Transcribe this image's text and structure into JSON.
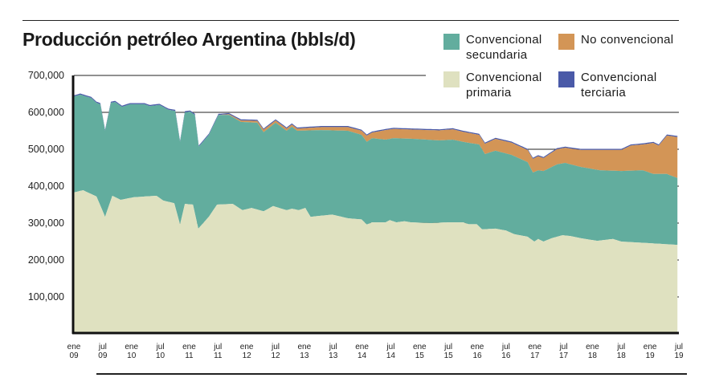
{
  "chart_data": {
    "type": "area",
    "stacked": true,
    "title": "Producción petróleo Argentina (bbls/d)",
    "ylabel": "bbls/d",
    "ylim": [
      0,
      700000
    ],
    "yticks": [
      100000,
      200000,
      300000,
      400000,
      500000,
      600000,
      700000
    ],
    "ytick_labels": [
      "100,000",
      "200,000",
      "300,000",
      "400,000",
      "500,000",
      "600,000",
      "700,000"
    ],
    "x_unit": "months since ene 09",
    "xlim": [
      0,
      126
    ],
    "xticks": [
      {
        "m": 0,
        "l1": "ene",
        "l2": "09"
      },
      {
        "m": 6,
        "l1": "jul",
        "l2": "09"
      },
      {
        "m": 12,
        "l1": "ene",
        "l2": "10"
      },
      {
        "m": 18,
        "l1": "jul",
        "l2": "10"
      },
      {
        "m": 24,
        "l1": "ene",
        "l2": "11"
      },
      {
        "m": 30,
        "l1": "jul",
        "l2": "11"
      },
      {
        "m": 36,
        "l1": "ene",
        "l2": "12"
      },
      {
        "m": 42,
        "l1": "jul",
        "l2": "12"
      },
      {
        "m": 48,
        "l1": "ene",
        "l2": "13"
      },
      {
        "m": 54,
        "l1": "jul",
        "l2": "13"
      },
      {
        "m": 60,
        "l1": "ene",
        "l2": "14"
      },
      {
        "m": 66,
        "l1": "jul",
        "l2": "14"
      },
      {
        "m": 72,
        "l1": "ene",
        "l2": "15"
      },
      {
        "m": 78,
        "l1": "jul",
        "l2": "15"
      },
      {
        "m": 84,
        "l1": "ene",
        "l2": "16"
      },
      {
        "m": 90,
        "l1": "jul",
        "l2": "16"
      },
      {
        "m": 96,
        "l1": "ene",
        "l2": "17"
      },
      {
        "m": 102,
        "l1": "jul",
        "l2": "17"
      },
      {
        "m": 108,
        "l1": "ene",
        "l2": "18"
      },
      {
        "m": 114,
        "l1": "jul",
        "l2": "18"
      },
      {
        "m": 120,
        "l1": "ene",
        "l2": "19"
      },
      {
        "m": 126,
        "l1": "jul",
        "l2": "19"
      }
    ],
    "grid": true,
    "legend_placement": "top-right",
    "value_units": "thousand bbls/d (cumulative stack top)",
    "series": [
      {
        "name": "Convencional primaria",
        "color": "#dfe1c0",
        "x": [
          0,
          1.9,
          4.7,
          6.5,
          8,
          9.7,
          12.5,
          17.2,
          18.6,
          20.9,
          22.1,
          23.1,
          24.8,
          25.9,
          28.1,
          29.8,
          33.1,
          35.1,
          37,
          39.5,
          41.5,
          44.3,
          45.4,
          46.8,
          48.2,
          49.3,
          53.8,
          57.1,
          59.9,
          61,
          62.1,
          64.9,
          65.8,
          67.2,
          68.8,
          70.2,
          74.4,
          77.8,
          81.1,
          82.2,
          83.9,
          85,
          87.8,
          90,
          91.7,
          94.5,
          95.9,
          96.7,
          97.8,
          99.5,
          101.7,
          103.4,
          105.6,
          109,
          112.3,
          114,
          125.7
        ],
        "stack_top": [
          383,
          389,
          372,
          317,
          374,
          363,
          370,
          374,
          361,
          354,
          296,
          352,
          350,
          285,
          317,
          350,
          352,
          335,
          341,
          332,
          346,
          335,
          339,
          335,
          341,
          317,
          323,
          313,
          310,
          296,
          302,
          302,
          308,
          302,
          305,
          302,
          300,
          302,
          302,
          297,
          297,
          283,
          285,
          280,
          270,
          263,
          250,
          257,
          250,
          259,
          267,
          265,
          259,
          252,
          257,
          250,
          241
        ]
      },
      {
        "name": "Convencional secundaria",
        "color": "#62ad9e",
        "x": [
          0,
          1.3,
          3.6,
          4.7,
          5.5,
          6.5,
          7.7,
          8.6,
          10,
          11.7,
          14.7,
          15.8,
          17.8,
          19.7,
          21.1,
          22.1,
          23.1,
          24.2,
          25.2,
          26,
          28.1,
          30.1,
          32.3,
          34.8,
          38.2,
          39.5,
          42,
          44.3,
          45.4,
          46.5,
          51.5,
          57.1,
          59.9,
          61,
          62.1,
          64.9,
          66.6,
          71.1,
          76.1,
          78.9,
          81.1,
          84.4,
          85.6,
          87.8,
          91.1,
          94.5,
          95.6,
          96.7,
          97.8,
          100.6,
          102.3,
          105.6,
          109.6,
          114,
          118.5,
          120.7,
          123.5,
          125.7
        ],
        "stack_top": [
          643,
          648,
          639,
          626,
          622,
          550,
          626,
          628,
          615,
          622,
          622,
          617,
          620,
          607,
          604,
          520,
          600,
          602,
          593,
          507,
          539,
          593,
          593,
          574,
          572,
          546,
          572,
          550,
          561,
          550,
          552,
          550,
          539,
          520,
          530,
          526,
          530,
          528,
          524,
          526,
          520,
          513,
          487,
          496,
          485,
          465,
          437,
          443,
          441,
          459,
          463,
          452,
          443,
          441,
          443,
          433,
          433,
          422
        ]
      },
      {
        "name": "No convencional",
        "color": "#d39556",
        "x": [
          30.1,
          32.3,
          34.8,
          38.2,
          39.5,
          42,
          44.3,
          45.4,
          46.5,
          51.5,
          57.1,
          59.9,
          61,
          62.1,
          64.9,
          66.6,
          71.1,
          76.1,
          78.9,
          81.1,
          84.4,
          85.6,
          87.8,
          91.1,
          94.5,
          95.6,
          96.7,
          97.8,
          100.6,
          102.3,
          105.6,
          109.6,
          114,
          116,
          118.5,
          120.7,
          121.8,
          123.5,
          125.7
        ],
        "stack_top": [
          593,
          595,
          578,
          577,
          553,
          578,
          556,
          567,
          556,
          560,
          560,
          550,
          537,
          545,
          552,
          555,
          553,
          551,
          554,
          547,
          539,
          515,
          528,
          518,
          498,
          474,
          481,
          476,
          500,
          504,
          498,
          498,
          498,
          510,
          513,
          517,
          510,
          537,
          533
        ]
      },
      {
        "name": "Convencional terciaria",
        "color": "#4a5aa8",
        "thickness_approx": 3
      }
    ]
  },
  "legend": [
    {
      "label": "Convencional secundaria",
      "color": "#62ad9e"
    },
    {
      "label": "No convencional",
      "color": "#d39556"
    },
    {
      "label": "Convencional primaria",
      "color": "#dfe1c0"
    },
    {
      "label": "Convencional terciaria",
      "color": "#4a5aa8"
    }
  ]
}
